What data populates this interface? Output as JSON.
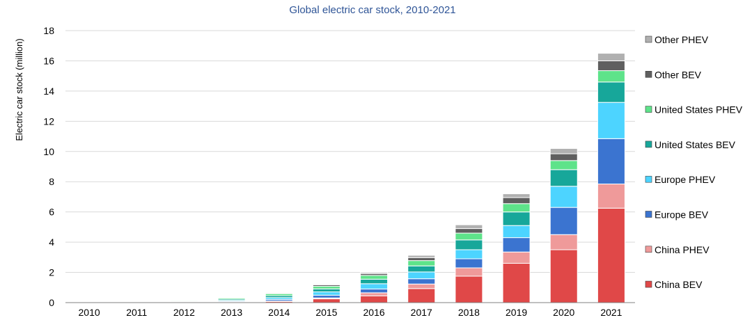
{
  "chart_data": {
    "type": "bar",
    "stacked": true,
    "title": "Global electric car stock, 2010-2021",
    "ylabel": "Electric car stock (million)",
    "xlabel": "",
    "ylim": [
      0,
      18
    ],
    "yticks": [
      0,
      2,
      4,
      6,
      8,
      10,
      12,
      14,
      16,
      18
    ],
    "grid": "horizontal",
    "legend_position": "right",
    "categories": [
      "2010",
      "2011",
      "2012",
      "2013",
      "2014",
      "2015",
      "2016",
      "2017",
      "2018",
      "2019",
      "2020",
      "2021"
    ],
    "series": [
      {
        "name": "China BEV",
        "color": "#e04848",
        "values": [
          0.0,
          0.01,
          0.02,
          0.03,
          0.08,
          0.25,
          0.45,
          0.93,
          1.75,
          2.6,
          3.5,
          6.25
        ]
      },
      {
        "name": "China PHEV",
        "color": "#ef9a9a",
        "values": [
          0.0,
          0.0,
          0.0,
          0.01,
          0.03,
          0.06,
          0.2,
          0.3,
          0.55,
          0.75,
          1.0,
          1.6
        ]
      },
      {
        "name": "Europe BEV",
        "color": "#3b74d0",
        "values": [
          0.0,
          0.01,
          0.03,
          0.05,
          0.1,
          0.18,
          0.25,
          0.35,
          0.6,
          0.95,
          1.8,
          3.0
        ]
      },
      {
        "name": "Europe PHEV",
        "color": "#4dd4ff",
        "values": [
          0.0,
          0.0,
          0.01,
          0.06,
          0.12,
          0.22,
          0.35,
          0.45,
          0.6,
          0.8,
          1.4,
          2.4
        ]
      },
      {
        "name": "United States BEV",
        "color": "#17a79a",
        "values": [
          0.0,
          0.01,
          0.04,
          0.08,
          0.13,
          0.2,
          0.3,
          0.4,
          0.65,
          0.9,
          1.1,
          1.35
        ]
      },
      {
        "name": "United States PHEV",
        "color": "#5ee38a",
        "values": [
          0.0,
          0.01,
          0.05,
          0.08,
          0.13,
          0.17,
          0.25,
          0.35,
          0.45,
          0.55,
          0.6,
          0.75
        ]
      },
      {
        "name": "Other BEV",
        "color": "#5f5f5f",
        "values": [
          0.0,
          0.0,
          0.02,
          0.04,
          0.05,
          0.1,
          0.12,
          0.2,
          0.3,
          0.4,
          0.45,
          0.65
        ]
      },
      {
        "name": "Other PHEV",
        "color": "#b0b0b0",
        "values": [
          0.0,
          0.0,
          0.01,
          0.02,
          0.03,
          0.05,
          0.08,
          0.15,
          0.25,
          0.25,
          0.35,
          0.5
        ]
      }
    ]
  }
}
